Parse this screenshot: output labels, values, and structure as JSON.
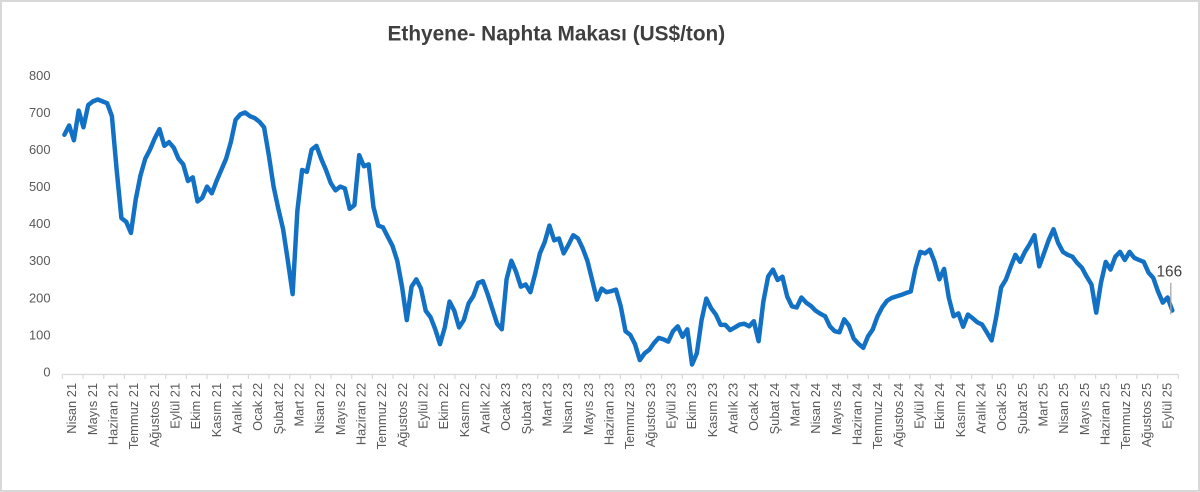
{
  "colors": {
    "line": "#1271C4",
    "title": "#3F3F3F",
    "axis_labels": "#595959",
    "axis_line": "#D9D9D9",
    "leader_line": "#A6A6A6",
    "data_label": "#404040",
    "border": "#D8D8D8",
    "background": "#FFFFFF"
  },
  "chart_data": {
    "type": "line",
    "title": "Ethyene- Naphta Makası (US$/ton)",
    "xlabel": "",
    "ylabel": "",
    "ylim": [
      0,
      800
    ],
    "y_ticks": [
      0,
      100,
      200,
      300,
      400,
      500,
      600,
      700,
      800
    ],
    "grid": false,
    "legend_position": "none",
    "x_labels_rotated_degrees": 270,
    "last_point_label": "166",
    "categories": [
      "Nisan 21",
      "Mayıs 21",
      "Haziran 21",
      "Temmuz 21",
      "Ağustos 21",
      "Eylül 21",
      "Ekim 21",
      "Kasım 21",
      "Aralık 21",
      "Ocak 22",
      "Şubat 22",
      "Mart 22",
      "Nisan 22",
      "Mayıs 22",
      "Haziran 22",
      "Temmuz 22",
      "Ağustos 22",
      "Eylül 22",
      "Ekim 22",
      "Kasım 22",
      "Aralık 22",
      "Ocak 23",
      "Şubat 23",
      "Mart 23",
      "Nisan 23",
      "Mayıs 23",
      "Haziran 23",
      "Temmuz 23",
      "Ağustos 23",
      "Eylül 23",
      "Ekim 23",
      "Kasım 23",
      "Aralık 23",
      "Ocak 24",
      "Şubat 24",
      "Mart 24",
      "Nisan 24",
      "Mayıs 24",
      "Haziran 24",
      "Temmuz 24",
      "Ağustos 24",
      "Eylül 24",
      "Ekim 24",
      "Kasım 24",
      "Aralık 24",
      "Ocak 25",
      "Şubat 25",
      "Mart 25",
      "Nisan 25",
      "Mayıs 25",
      "Haziran 25",
      "Temmuz 25",
      "Ağustos 25",
      "Eylül 25"
    ],
    "series_frequency_note": "weekly points spanning the monthly categories",
    "values": [
      640,
      665,
      625,
      705,
      660,
      720,
      730,
      735,
      730,
      725,
      690,
      545,
      415,
      405,
      375,
      465,
      530,
      575,
      600,
      630,
      655,
      610,
      620,
      605,
      575,
      560,
      515,
      525,
      460,
      470,
      500,
      482,
      515,
      545,
      575,
      620,
      680,
      695,
      700,
      690,
      685,
      675,
      660,
      585,
      500,
      440,
      385,
      300,
      210,
      435,
      545,
      540,
      600,
      610,
      575,
      545,
      510,
      490,
      500,
      495,
      440,
      450,
      585,
      555,
      560,
      445,
      395,
      390,
      365,
      340,
      300,
      230,
      140,
      230,
      250,
      225,
      165,
      148,
      115,
      75,
      120,
      190,
      165,
      120,
      140,
      185,
      205,
      240,
      245,
      210,
      170,
      130,
      115,
      250,
      300,
      270,
      230,
      236,
      215,
      265,
      320,
      350,
      395,
      355,
      360,
      320,
      343,
      369,
      360,
      334,
      300,
      248,
      195,
      225,
      215,
      218,
      222,
      177,
      110,
      100,
      75,
      32,
      50,
      60,
      78,
      92,
      88,
      82,
      110,
      123,
      95,
      115,
      20,
      50,
      140,
      198,
      172,
      155,
      127,
      127,
      113,
      120,
      128,
      130,
      123,
      137,
      83,
      190,
      257,
      276,
      248,
      257,
      204,
      177,
      174,
      201,
      187,
      178,
      165,
      157,
      150,
      123,
      110,
      107,
      142,
      125,
      90,
      76,
      65,
      96,
      115,
      150,
      175,
      192,
      200,
      204,
      208,
      213,
      217,
      280,
      324,
      320,
      330,
      297,
      250,
      278,
      200,
      150,
      158,
      122,
      155,
      145,
      134,
      128,
      107,
      85,
      150,
      228,
      249,
      284,
      316,
      297,
      324,
      345,
      369,
      285,
      320,
      356,
      385,
      348,
      324,
      316,
      311,
      294,
      281,
      257,
      236,
      160,
      241,
      297,
      276,
      311,
      324,
      302,
      324,
      308,
      302,
      297,
      268,
      254,
      217,
      187,
      201,
      166
    ]
  }
}
